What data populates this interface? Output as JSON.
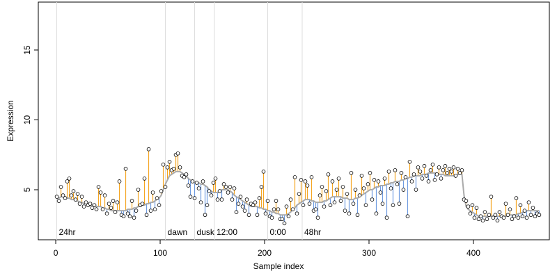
{
  "chart_data": {
    "type": "scatter",
    "xlabel": "Sample index",
    "ylabel": "Expression",
    "xlim": [
      -16.7,
      472.7
    ],
    "ylim": [
      1.42,
      18.43
    ],
    "xticks": [
      0,
      100,
      200,
      300,
      400
    ],
    "yticks": [
      5,
      10,
      15
    ],
    "above_color": "#f5a623",
    "below_color": "#6f9be0",
    "fitted_color": "#aaaaaa",
    "marker_line_color": "#dddddd",
    "marker_label_color": "#aaaaaa",
    "markers": [
      {
        "x": 1,
        "label": "24hr"
      },
      {
        "x": 105,
        "label": "dawn"
      },
      {
        "x": 133,
        "label": "dusk"
      },
      {
        "x": 152,
        "label": "12:00"
      },
      {
        "x": 203,
        "label": "0:00"
      },
      {
        "x": 236,
        "label": "48hr"
      }
    ],
    "x": [
      1,
      3,
      5,
      7,
      9,
      11,
      13,
      15,
      17,
      19,
      21,
      23,
      25,
      27,
      29,
      31,
      33,
      35,
      37,
      39,
      41,
      43,
      45,
      47,
      49,
      51,
      53,
      55,
      57,
      59,
      61,
      63,
      65,
      67,
      69,
      71,
      73,
      75,
      77,
      79,
      81,
      83,
      85,
      87,
      89,
      91,
      93,
      95,
      97,
      99,
      101,
      103,
      105,
      107,
      109,
      111,
      113,
      115,
      117,
      119,
      121,
      123,
      125,
      127,
      129,
      131,
      133,
      135,
      137,
      139,
      141,
      143,
      145,
      147,
      149,
      151,
      153,
      155,
      157,
      159,
      161,
      163,
      165,
      167,
      169,
      171,
      173,
      175,
      177,
      179,
      181,
      183,
      185,
      187,
      189,
      191,
      193,
      195,
      197,
      199,
      201,
      203,
      205,
      207,
      209,
      211,
      213,
      215,
      217,
      219,
      221,
      223,
      225,
      227,
      229,
      231,
      233,
      235,
      237,
      239,
      241,
      243,
      245,
      247,
      249,
      251,
      253,
      255,
      257,
      259,
      261,
      263,
      265,
      267,
      269,
      271,
      273,
      275,
      277,
      279,
      281,
      283,
      285,
      287,
      289,
      291,
      293,
      295,
      297,
      299,
      301,
      303,
      305,
      307,
      309,
      311,
      313,
      315,
      317,
      319,
      321,
      323,
      325,
      327,
      329,
      331,
      333,
      335,
      337,
      339,
      341,
      343,
      345,
      347,
      349,
      351,
      353,
      355,
      357,
      359,
      361,
      363,
      365,
      367,
      369,
      371,
      373,
      375,
      377,
      379,
      381,
      383,
      385,
      387,
      389,
      391,
      393,
      395,
      397,
      399,
      401,
      403,
      405,
      407,
      409,
      411,
      413,
      415,
      417,
      419,
      421,
      423,
      425,
      427,
      429,
      431,
      433,
      435,
      437,
      439,
      441,
      443,
      445,
      447,
      449,
      451,
      453,
      455,
      457,
      459,
      461,
      463
    ],
    "values": [
      4.5,
      4.2,
      5.2,
      4.6,
      4.4,
      5.6,
      5.8,
      4.6,
      4.9,
      4.3,
      4.7,
      4.0,
      4.5,
      3.8,
      4.1,
      3.9,
      4.0,
      3.7,
      3.9,
      3.6,
      5.2,
      4.8,
      3.6,
      4.6,
      3.3,
      4.0,
      3.7,
      4.2,
      3.4,
      4.1,
      5.6,
      3.2,
      3.1,
      6.5,
      3.3,
      3.1,
      4.2,
      3.0,
      3.5,
      5.0,
      3.9,
      4.0,
      5.8,
      3.2,
      7.9,
      3.5,
      4.8,
      3.6,
      4.4,
      3.9,
      4.9,
      6.8,
      5.2,
      6.6,
      7.0,
      6.4,
      6.5,
      7.5,
      7.6,
      6.6,
      6.0,
      5.9,
      6.1,
      5.3,
      4.5,
      5.6,
      4.4,
      5.5,
      5.1,
      4.1,
      5.6,
      3.2,
      3.9,
      4.9,
      4.6,
      5.5,
      5.8,
      4.3,
      4.9,
      4.3,
      5.4,
      5.2,
      4.8,
      5.2,
      4.3,
      5.1,
      3.4,
      4.0,
      4.5,
      3.8,
      3.5,
      4.3,
      3.2,
      4.0,
      3.9,
      4.1,
      3.2,
      4.4,
      5.2,
      6.3,
      3.3,
      4.2,
      3.1,
      3.0,
      3.6,
      4.2,
      3.6,
      2.9,
      2.9,
      2.6,
      3.8,
      3.1,
      4.3,
      3.6,
      5.9,
      3.3,
      4.7,
      5.7,
      3.9,
      5.6,
      5.3,
      4.0,
      5.9,
      3.5,
      3.6,
      3.0,
      4.6,
      5.2,
      3.8,
      4.9,
      6.1,
      3.9,
      5.6,
      4.1,
      5.0,
      5.8,
      4.2,
      5.2,
      3.5,
      4.7,
      3.3,
      6.2,
      4.0,
      5.0,
      3.2,
      4.6,
      6.0,
      5.1,
      3.9,
      5.4,
      6.2,
      4.3,
      5.7,
      3.3,
      5.6,
      4.8,
      4.0,
      5.8,
      3.0,
      6.3,
      5.1,
      3.9,
      6.4,
      5.4,
      4.0,
      6.2,
      5.0,
      5.9,
      3.1,
      7.0,
      5.6,
      6.1,
      5.0,
      6.6,
      6.3,
      5.8,
      6.7,
      6.0,
      5.6,
      6.4,
      6.8,
      5.7,
      6.1,
      6.6,
      5.8,
      6.4,
      6.7,
      6.2,
      6.5,
      6.3,
      6.6,
      6.0,
      6.5,
      6.2,
      6.4,
      4.3,
      4.2,
      3.8,
      3.3,
      3.9,
      3.0,
      3.7,
      2.9,
      3.1,
      2.8,
      3.4,
      2.9,
      3.2,
      4.5,
      3.0,
      3.2,
      2.8,
      3.4,
      3.1,
      3.0,
      4.0,
      3.2,
      3.6,
      2.9,
      3.1,
      4.4,
      3.0,
      3.9,
      3.1,
      3.5,
      3.0,
      4.1,
      3.2,
      3.7,
      3.1,
      3.3,
      3.2
    ],
    "fitted": [
      4.4,
      4.4,
      4.5,
      4.5,
      4.5,
      4.4,
      4.4,
      4.3,
      4.3,
      4.2,
      4.2,
      4.1,
      4.1,
      4.0,
      4.0,
      4.0,
      3.9,
      3.9,
      3.9,
      3.8,
      3.8,
      3.8,
      3.7,
      3.7,
      3.6,
      3.6,
      3.5,
      3.5,
      3.5,
      3.5,
      3.5,
      3.5,
      3.5,
      3.5,
      3.6,
      3.6,
      3.6,
      3.7,
      3.7,
      3.8,
      3.8,
      3.9,
      3.9,
      4.0,
      4.0,
      4.1,
      4.1,
      4.2,
      4.3,
      4.4,
      4.6,
      5.0,
      5.4,
      5.7,
      6.0,
      6.1,
      6.2,
      6.3,
      6.3,
      6.3,
      6.2,
      6.1,
      6.0,
      5.8,
      5.7,
      5.6,
      5.5,
      5.5,
      5.5,
      5.4,
      5.4,
      5.3,
      5.2,
      5.0,
      4.9,
      4.8,
      4.8,
      4.8,
      4.9,
      5.0,
      5.0,
      5.0,
      5.0,
      4.9,
      4.8,
      4.6,
      4.5,
      4.4,
      4.3,
      4.2,
      4.1,
      4.0,
      3.9,
      3.8,
      3.8,
      3.8,
      3.8,
      3.7,
      3.7,
      3.6,
      3.6,
      3.5,
      3.5,
      3.4,
      3.4,
      3.3,
      3.3,
      3.2,
      3.2,
      3.2,
      3.2,
      3.3,
      3.4,
      3.6,
      3.7,
      3.9,
      4.0,
      4.1,
      4.2,
      4.3,
      4.3,
      4.3,
      4.2,
      4.2,
      4.1,
      4.1,
      4.1,
      4.1,
      4.2,
      4.2,
      4.3,
      4.4,
      4.5,
      4.5,
      4.5,
      4.5,
      4.5,
      4.4,
      4.4,
      4.4,
      4.3,
      4.3,
      4.3,
      4.4,
      4.4,
      4.5,
      4.6,
      4.7,
      4.8,
      4.9,
      5.0,
      5.0,
      5.1,
      5.2,
      5.2,
      5.3,
      5.3,
      5.3,
      5.4,
      5.4,
      5.5,
      5.5,
      5.6,
      5.6,
      5.6,
      5.7,
      5.7,
      5.8,
      5.8,
      5.9,
      5.9,
      6.0,
      6.0,
      6.0,
      6.0,
      6.1,
      6.1,
      6.1,
      6.2,
      6.2,
      6.2,
      6.2,
      6.2,
      6.1,
      6.1,
      6.1,
      6.0,
      6.0,
      6.0,
      6.0,
      6.0,
      5.9,
      6.1,
      6.2,
      6.1,
      4.6,
      3.8,
      3.6,
      3.5,
      3.4,
      3.3,
      3.2,
      3.1,
      3.1,
      3.1,
      3.1,
      3.1,
      3.1,
      3.1,
      3.1,
      3.1,
      3.1,
      3.1,
      3.1,
      3.1,
      3.1,
      3.2,
      3.2,
      3.2,
      3.2,
      3.2,
      3.3,
      3.3,
      3.4,
      3.4,
      3.5,
      3.5,
      3.5,
      3.5,
      3.5,
      3.5,
      3.5
    ]
  }
}
